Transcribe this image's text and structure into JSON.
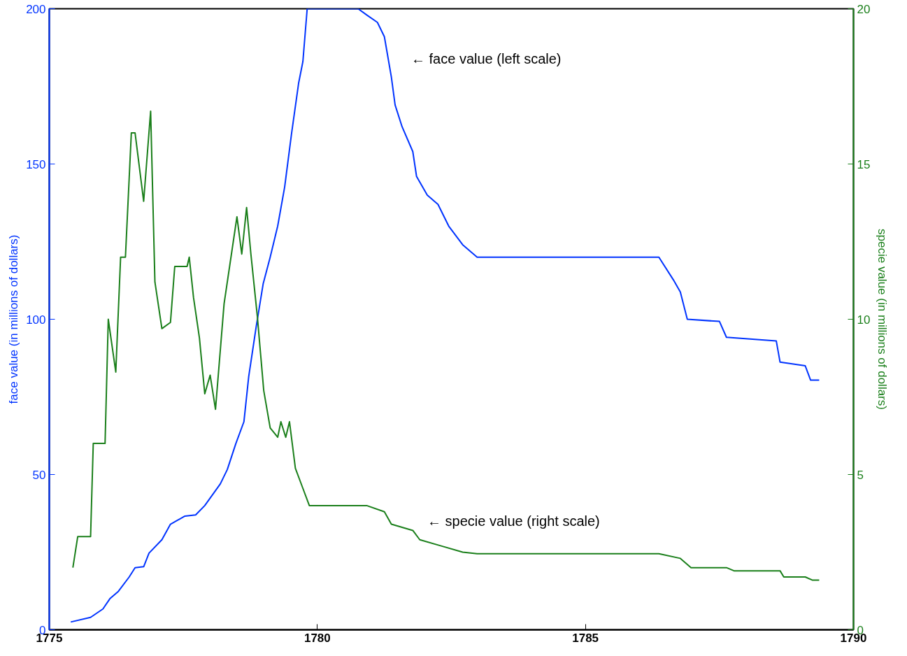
{
  "chart_data": {
    "type": "line",
    "xlabel": null,
    "ylabel": "face value (in millions of dollars)",
    "y2label": "specie value (in millions of dollars)",
    "xlim": [
      1775,
      1790
    ],
    "xticks": [
      1775,
      1780,
      1785,
      1790
    ],
    "ylim": [
      0,
      200
    ],
    "yticks": [
      0,
      50,
      100,
      150,
      200
    ],
    "y2lim": [
      0,
      20
    ],
    "y2ticks": [
      0,
      5,
      10,
      15,
      20
    ],
    "grid": false,
    "marker": "none",
    "line_style": "solid",
    "annotations": [
      "← face value (left scale)",
      "← specie value (right scale)"
    ],
    "series": [
      {
        "color": "#0033ff",
        "x": [
          1775.4,
          1775.77,
          1776.0,
          1776.13,
          1776.29,
          1776.49,
          1776.6,
          1776.76,
          1776.86,
          1777.1,
          1777.26,
          1777.53,
          1777.73,
          1777.9,
          1778.19,
          1778.32,
          1778.48,
          1778.63,
          1778.72,
          1778.86,
          1778.99,
          1779.12,
          1779.26,
          1779.39,
          1779.52,
          1779.65,
          1779.73,
          1779.81,
          1780.76,
          1780.92,
          1781.12,
          1781.25,
          1781.38,
          1781.45,
          1781.58,
          1781.78,
          1781.85,
          1782.05,
          1782.25,
          1782.45,
          1782.71,
          1782.98,
          1786.37,
          1786.64,
          1786.77,
          1786.9,
          1787.5,
          1787.63,
          1788.56,
          1788.63,
          1789.1,
          1789.2,
          1789.36
        ],
        "values": [
          2.5,
          4,
          6.7,
          10,
          12.4,
          17,
          20,
          20.3,
          24.7,
          29,
          34,
          36.6,
          37,
          40,
          47,
          51.6,
          60,
          67,
          81.6,
          97.7,
          111.5,
          120,
          130,
          142.6,
          160,
          176,
          183,
          200,
          200,
          198,
          195.6,
          191,
          178,
          169,
          162,
          154,
          146,
          140,
          137,
          130,
          124,
          120,
          120,
          112.7,
          108.8,
          100,
          99.3,
          94.2,
          93,
          86.2,
          85,
          80.4,
          80.4
        ]
      },
      {
        "color": "#1a7f1a",
        "axis": "y2",
        "x": [
          1775.44,
          1775.53,
          1775.77,
          1775.82,
          1776.04,
          1776.1,
          1776.24,
          1776.33,
          1776.42,
          1776.53,
          1776.6,
          1776.76,
          1776.89,
          1776.97,
          1777.1,
          1777.26,
          1777.34,
          1777.57,
          1777.61,
          1777.69,
          1777.8,
          1777.9,
          1778.0,
          1778.1,
          1778.26,
          1778.5,
          1778.59,
          1778.68,
          1778.76,
          1778.88,
          1779.0,
          1779.12,
          1779.26,
          1779.32,
          1779.41,
          1779.48,
          1779.59,
          1779.72,
          1779.85,
          1780.92,
          1781.25,
          1781.38,
          1781.78,
          1781.91,
          1782.31,
          1782.71,
          1782.98,
          1786.37,
          1786.77,
          1786.97,
          1787.63,
          1787.77,
          1788.63,
          1788.7,
          1789.1,
          1789.23,
          1789.36
        ],
        "values": [
          2.0,
          3.0,
          3.0,
          6.0,
          6.0,
          10.0,
          8.3,
          12,
          12,
          16,
          16,
          13.8,
          16.7,
          11.2,
          9.7,
          9.9,
          11.7,
          11.7,
          12.0,
          10.7,
          9.4,
          7.6,
          8.2,
          7.1,
          10.5,
          13.3,
          12.1,
          13.6,
          12.1,
          10.1,
          7.7,
          6.5,
          6.2,
          6.7,
          6.2,
          6.7,
          5.2,
          4.6,
          4.0,
          4.0,
          3.8,
          3.4,
          3.2,
          2.9,
          2.7,
          2.5,
          2.45,
          2.45,
          2.3,
          2.0,
          2.0,
          1.9,
          1.9,
          1.7,
          1.7,
          1.6,
          1.6
        ]
      }
    ]
  }
}
